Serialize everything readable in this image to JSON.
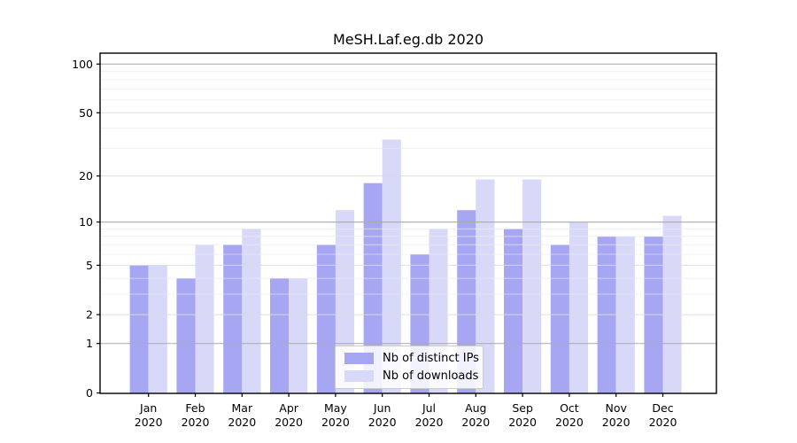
{
  "title": "MeSH.Laf.eg.db 2020",
  "chart_data": {
    "type": "bar",
    "title": "MeSH.Laf.eg.db 2020",
    "xlabel": "",
    "ylabel": "",
    "categories": [
      "Jan",
      "Feb",
      "Mar",
      "Apr",
      "May",
      "Jun",
      "Jul",
      "Aug",
      "Sep",
      "Oct",
      "Nov",
      "Dec"
    ],
    "year_label": "2020",
    "series": [
      {
        "name": "Nb of distinct IPs",
        "color": "#a6a6f3",
        "values": [
          5,
          4,
          7,
          4,
          7,
          18,
          6,
          12,
          9,
          7,
          8,
          8
        ]
      },
      {
        "name": "Nb of downloads",
        "color": "#d8d8f8",
        "values": [
          5,
          7,
          9,
          4,
          12,
          34,
          9,
          19,
          19,
          10,
          8,
          11
        ]
      }
    ],
    "yscale": "log1p",
    "ylim": [
      0,
      117
    ],
    "y_tick_labels": [
      "100",
      "50",
      "20",
      "10",
      "5",
      "2",
      "1",
      "0"
    ],
    "y_tick_values": [
      100,
      50,
      20,
      10,
      5,
      2,
      1,
      0
    ],
    "y_decade_gridlines": [
      1,
      10,
      100
    ],
    "y_major_gridlines": [
      2,
      5,
      20,
      50
    ],
    "y_minor_gridlines": [
      3,
      4,
      6,
      7,
      8,
      9,
      30,
      40,
      60,
      70,
      80,
      90
    ],
    "grid": "on",
    "legend_position": "inside lower center",
    "colors": {
      "spine": "#000000",
      "decade_grid": "#ababab",
      "major_grid": "#dcdcdc",
      "minor_grid": "#ebebeb",
      "text": "#000000"
    }
  }
}
